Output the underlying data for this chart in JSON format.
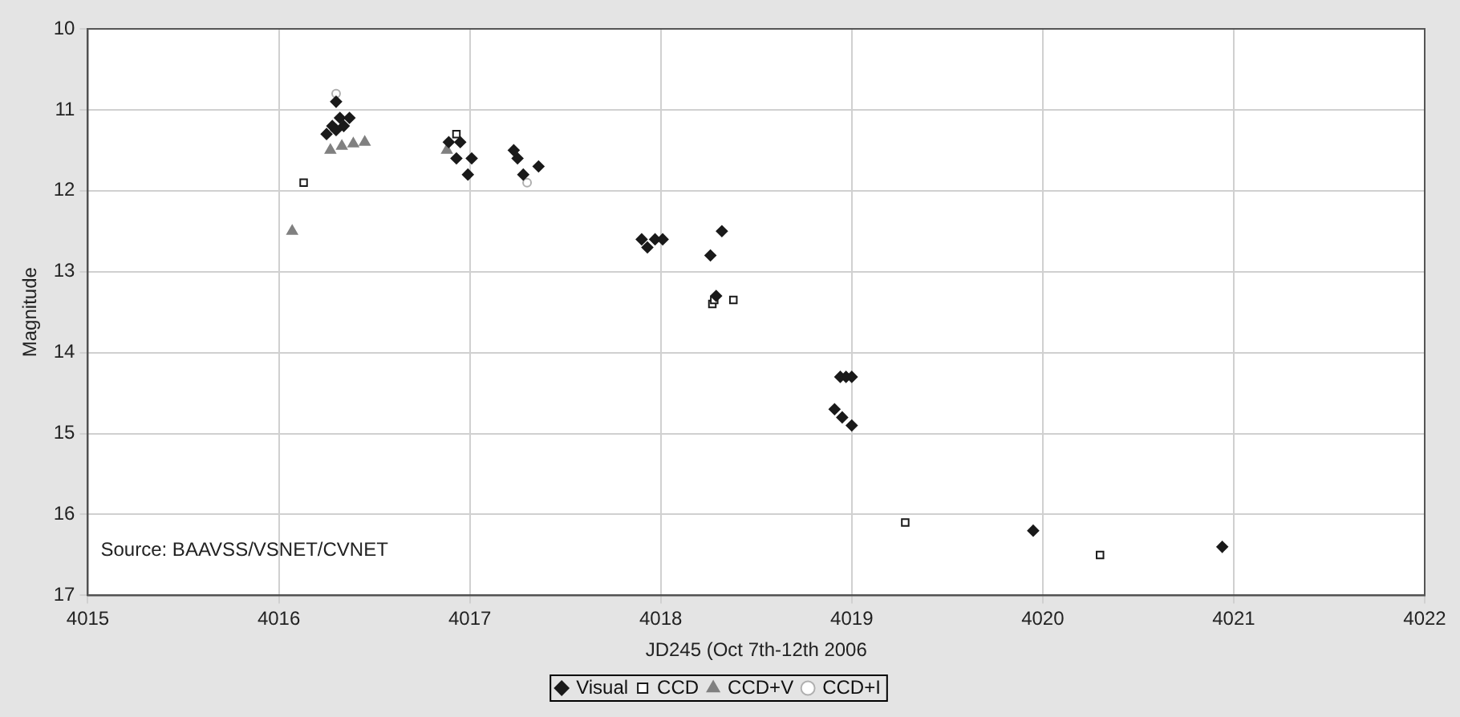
{
  "chart_data": {
    "type": "scatter",
    "xlabel": "JD245 (Oct 7th-12th 2006",
    "ylabel": "Magnitude",
    "xlim": [
      4015,
      4022
    ],
    "xticks": [
      4015,
      4016,
      4017,
      4018,
      4019,
      4020,
      4021,
      4022
    ],
    "ylim": [
      17,
      10
    ],
    "yticks": [
      10,
      11,
      12,
      13,
      14,
      15,
      16,
      17
    ],
    "grid": true,
    "legend": "bottom",
    "annotations": [
      "Source: BAAVSS/VSNET/CVNET"
    ],
    "series": [
      {
        "name": "Visual",
        "color": "#1a1a1a",
        "marker": "diamond",
        "x": [
          4016.3,
          4016.25,
          4016.28,
          4016.32,
          4016.37,
          4016.34,
          4016.3,
          4016.89,
          4016.93,
          4016.95,
          4016.99,
          4017.01,
          4017.23,
          4017.25,
          4017.28,
          4017.36,
          4017.9,
          4017.93,
          4017.97,
          4018.01,
          4018.26,
          4018.32,
          4018.29,
          4018.94,
          4018.97,
          4019.0,
          4018.91,
          4018.95,
          4019.0,
          4019.95,
          4020.94
        ],
        "values": [
          10.9,
          11.3,
          11.2,
          11.1,
          11.1,
          11.2,
          11.25,
          11.4,
          11.6,
          11.4,
          11.8,
          11.6,
          11.5,
          11.6,
          11.8,
          11.7,
          12.6,
          12.7,
          12.6,
          12.6,
          12.8,
          12.5,
          13.3,
          14.3,
          14.3,
          14.3,
          14.7,
          14.8,
          14.9,
          16.2,
          16.4
        ]
      },
      {
        "name": "CCD",
        "color": "#1a1a1a",
        "marker": "square",
        "x": [
          4016.13,
          4016.93,
          4018.27,
          4018.28,
          4018.38,
          4019.28,
          4020.3
        ],
        "values": [
          11.9,
          11.3,
          13.4,
          13.35,
          13.35,
          16.1,
          16.5
        ]
      },
      {
        "name": "CCD+V",
        "color": "#808080",
        "marker": "triangle",
        "x": [
          4016.07,
          4016.88,
          4016.27,
          4016.33,
          4016.39,
          4016.45
        ],
        "values": [
          12.5,
          11.5,
          11.5,
          11.45,
          11.42,
          11.4
        ]
      },
      {
        "name": "CCD+I",
        "color": "#b0b0b0",
        "marker": "circle",
        "x": [
          4016.3,
          4017.3
        ],
        "values": [
          10.8,
          11.9
        ]
      }
    ]
  }
}
